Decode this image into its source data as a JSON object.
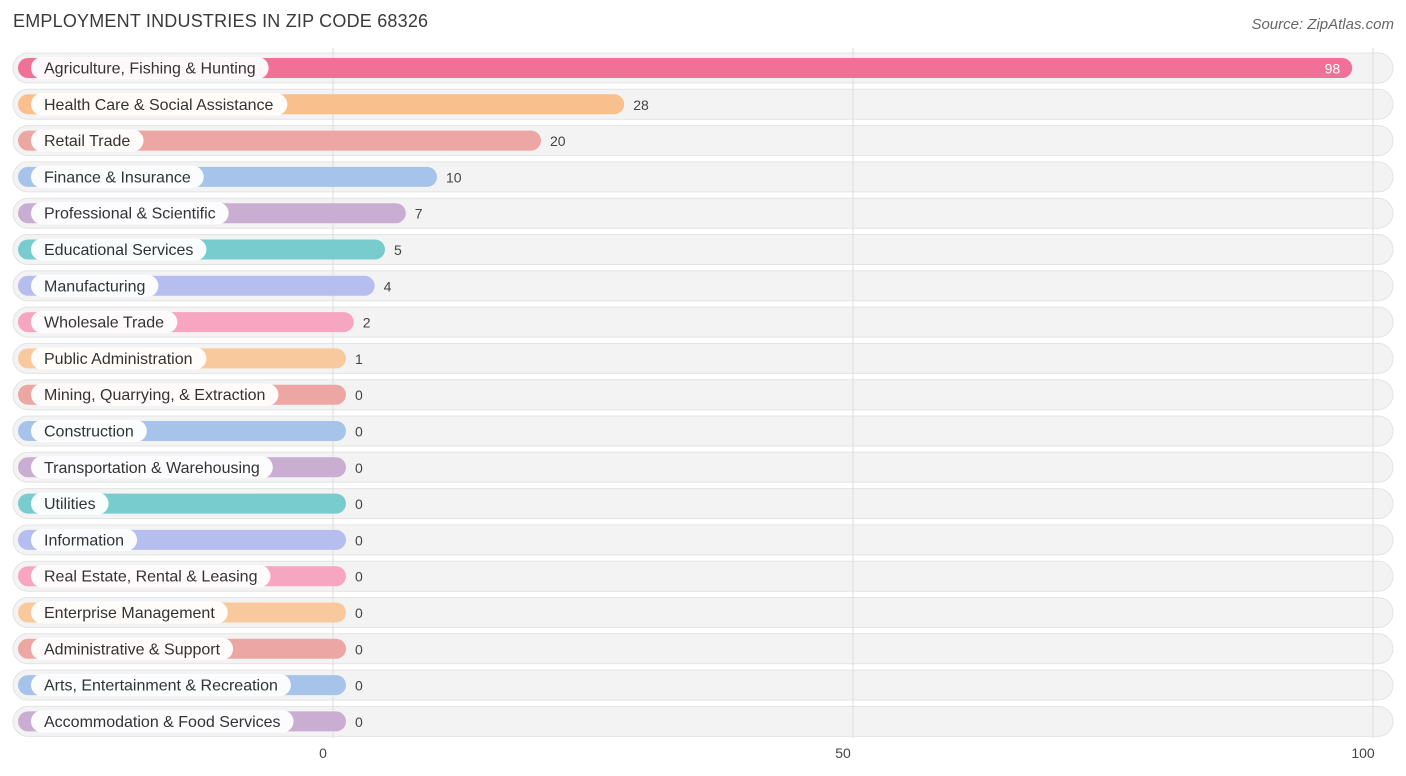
{
  "page": {
    "title": "EMPLOYMENT INDUSTRIES IN ZIP CODE 68326",
    "source": "Source: ZipAtlas.com"
  },
  "chart_data": {
    "type": "bar",
    "orientation": "horizontal",
    "title": "EMPLOYMENT INDUSTRIES IN ZIP CODE 68326",
    "xlim": [
      0,
      100
    ],
    "x_ticks": [
      "0",
      "50",
      "100"
    ],
    "grid": true,
    "categories": [
      "Agriculture, Fishing & Hunting",
      "Health Care & Social Assistance",
      "Retail Trade",
      "Finance & Insurance",
      "Professional & Scientific",
      "Educational Services",
      "Manufacturing",
      "Wholesale Trade",
      "Public Administration",
      "Mining, Quarrying, & Extraction",
      "Construction",
      "Transportation & Warehousing",
      "Utilities",
      "Information",
      "Real Estate, Rental & Leasing",
      "Enterprise Management",
      "Administrative & Support",
      "Arts, Entertainment & Recreation",
      "Accommodation & Food Services"
    ],
    "values": [
      98,
      28,
      20,
      10,
      7,
      5,
      4,
      2,
      1,
      0,
      0,
      0,
      0,
      0,
      0,
      0,
      0,
      0,
      0
    ],
    "colors": [
      "#f07098",
      "#f9c08e",
      "#eca6a3",
      "#a6c4ea",
      "#c9aed2",
      "#78cccd",
      "#b6bdef",
      "#f6a6c0",
      "#f9c99e",
      "#eca6a3",
      "#a6c4ea",
      "#c9aed2",
      "#78cccd",
      "#b6bdef",
      "#f6a6c0",
      "#f9c99e",
      "#eca6a3",
      "#a6c4ea",
      "#c9aed2"
    ]
  }
}
